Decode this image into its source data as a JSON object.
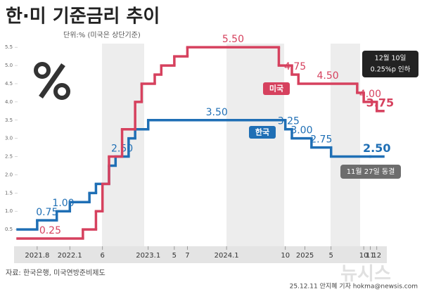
{
  "chart_data": {
    "type": "step-line",
    "title": "한·미 기준금리 추이",
    "subtitle": "단위:% (미국은 상단기준)",
    "source": "자료: 한국은행, 미국연방준비제도",
    "credit": "25.12.11 안지혜 기자 hokma@newsis.com",
    "watermark": "뉴시스",
    "annotations": [
      "12월 10일",
      "0.25%p 인하",
      "11월 27일 동결"
    ],
    "xlim": [
      "2021-05",
      "2026-01"
    ],
    "xticks": [
      {
        "value": "2021-08",
        "label": "2021.8"
      },
      {
        "value": "2022-01",
        "label": "2022.1"
      },
      {
        "value": "2022-06",
        "label": "6"
      },
      {
        "value": "2023-01",
        "label": "2023.1"
      },
      {
        "value": "2023-05",
        "label": "5"
      },
      {
        "value": "2023-07",
        "label": "7"
      },
      {
        "value": "2024-01",
        "label": "2024.1"
      },
      {
        "value": "2024-10",
        "label": "10"
      },
      {
        "value": "2025-01",
        "label": "2025"
      },
      {
        "value": "2025-05",
        "label": "5"
      },
      {
        "value": "2025-10",
        "label": "10"
      },
      {
        "value": "2025-11",
        "label": "11"
      },
      {
        "value": "2025-12",
        "label": "12"
      }
    ],
    "ylim": [
      0,
      5.6
    ],
    "yticks": [
      0.5,
      {
        "value": 1,
        "label": "1.0"
      },
      1.5,
      {
        "value": 2,
        "label": "2.0"
      },
      2.5,
      {
        "value": 3,
        "label": "3.0"
      },
      3.5,
      {
        "value": 4,
        "label": "4.0"
      },
      4.5,
      {
        "value": 5,
        "label": "5.0"
      },
      5.5
    ],
    "grid": false,
    "series": [
      {
        "name": "한국",
        "color": "#1f6fb5",
        "x": [
          "2021-05",
          "2021-08",
          "2021-11",
          "2022-01",
          "2022-04",
          "2022-05",
          "2022-07",
          "2022-08",
          "2022-10",
          "2022-11",
          "2023-01",
          "2024-10",
          "2024-11",
          "2025-02",
          "2025-05",
          "2025-11"
        ],
        "values": [
          0.5,
          0.75,
          1,
          1.25,
          1.5,
          1.75,
          2.25,
          2.5,
          3,
          3.25,
          3.5,
          3.25,
          3,
          2.75,
          2.5,
          2.5
        ],
        "value_labels": [
          null,
          "0.75",
          "1.00",
          null,
          null,
          null,
          null,
          "2.50",
          null,
          null,
          "3.50",
          "3.25",
          "3.00",
          "2.75",
          null,
          "2.50"
        ]
      },
      {
        "name": "미국",
        "color": "#d6415e",
        "x": [
          "2021-05",
          "2022-03",
          "2022-05",
          "2022-06",
          "2022-07",
          "2022-09",
          "2022-11",
          "2022-12",
          "2023-02",
          "2023-03",
          "2023-05",
          "2023-07",
          "2024-09",
          "2024-11",
          "2024-12",
          "2025-09",
          "2025-10",
          "2025-12"
        ],
        "values": [
          0.25,
          0.5,
          1,
          1.75,
          2.5,
          3.25,
          4,
          4.5,
          4.75,
          5,
          5.25,
          5.5,
          5,
          4.75,
          4.5,
          4.25,
          4,
          3.75
        ],
        "value_labels": [
          "0.25",
          null,
          null,
          null,
          null,
          null,
          null,
          null,
          null,
          null,
          null,
          "5.50",
          null,
          "4.75",
          "4.50",
          null,
          "4.00",
          "3.75"
        ]
      }
    ]
  }
}
